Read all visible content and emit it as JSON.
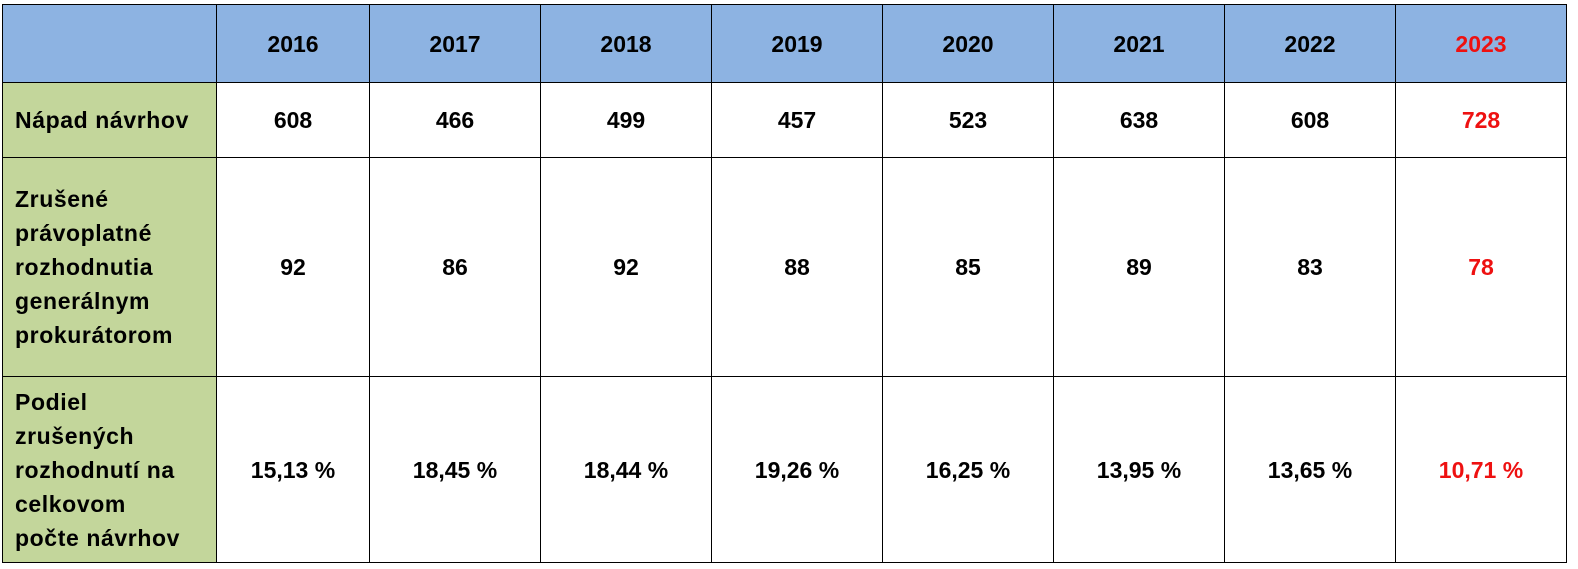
{
  "chart_data": {
    "type": "table",
    "columns": [
      "2016",
      "2017",
      "2018",
      "2019",
      "2020",
      "2021",
      "2022",
      "2023"
    ],
    "highlight_column": "2023",
    "colors": {
      "header_bg": "#8db3e2",
      "row_label_bg": "#c3d69b",
      "highlight_text": "#ee1111",
      "text": "#000000"
    },
    "rows": [
      {
        "label_lines": [
          "Nápad návrhov"
        ],
        "values": [
          "608",
          "466",
          "499",
          "457",
          "523",
          "638",
          "608",
          "728"
        ]
      },
      {
        "label_lines": [
          "Zrušené",
          "právoplatné",
          "rozhodnutia",
          "generálnym",
          "prokurátorom"
        ],
        "values": [
          "92",
          "86",
          "92",
          "88",
          "85",
          "89",
          "83",
          "78"
        ]
      },
      {
        "label_lines": [
          "Podiel",
          "zrušených",
          "rozhodnutí na",
          "celkovom",
          "počte návrhov"
        ],
        "values": [
          "15,13 %",
          "18,45 %",
          "18,44 %",
          "19,26 %",
          "16,25 %",
          "13,95 %",
          "13,65 %",
          "10,71 %"
        ]
      }
    ]
  }
}
